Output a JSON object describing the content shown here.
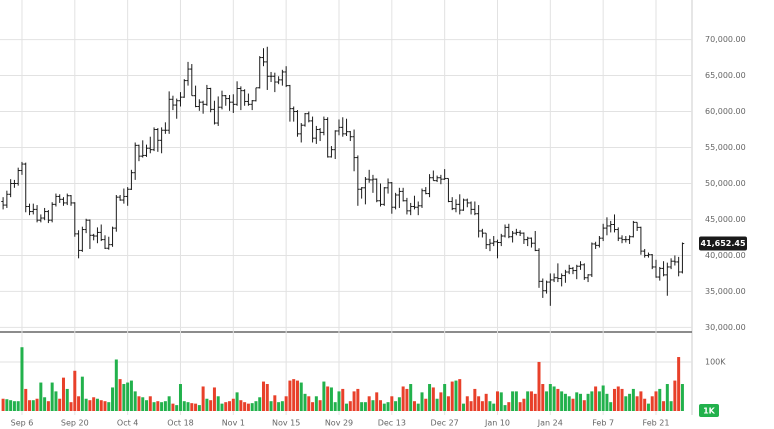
{
  "chart_data": {
    "type": "ohlc",
    "categories": [
      null,
      null,
      null,
      null,
      null,
      "Sep 6",
      null,
      null,
      null,
      null,
      null,
      null,
      null,
      null,
      null,
      null,
      null,
      null,
      null,
      "Sep 20",
      null,
      null,
      null,
      null,
      null,
      null,
      null,
      null,
      null,
      null,
      null,
      null,
      null,
      "Oct 4",
      null,
      null,
      null,
      null,
      null,
      null,
      null,
      null,
      null,
      null,
      null,
      null,
      null,
      "Oct 18",
      null,
      null,
      null,
      null,
      null,
      null,
      null,
      null,
      null,
      null,
      null,
      null,
      null,
      "Nov 1",
      null,
      null,
      null,
      null,
      null,
      null,
      null,
      null,
      null,
      null,
      null,
      null,
      null,
      "Nov 15",
      null,
      null,
      null,
      null,
      null,
      null,
      null,
      null,
      null,
      null,
      null,
      null,
      null,
      "Nov 29",
      null,
      null,
      null,
      null,
      null,
      null,
      null,
      null,
      null,
      null,
      null,
      null,
      null,
      "Dec 13",
      null,
      null,
      null,
      null,
      null,
      null,
      null,
      null,
      null,
      null,
      null,
      null,
      null,
      "Dec 27",
      null,
      null,
      null,
      null,
      null,
      null,
      null,
      null,
      null,
      null,
      null,
      null,
      null,
      "Jan 10",
      null,
      null,
      null,
      null,
      null,
      null,
      null,
      null,
      null,
      null,
      null,
      null,
      null,
      "Jan 24",
      null,
      null,
      null,
      null,
      null,
      null,
      null,
      null,
      null,
      null,
      null,
      null,
      null,
      "Feb 7",
      null,
      null,
      null,
      null,
      null,
      null,
      null,
      null,
      null,
      null,
      null,
      null,
      null,
      "Feb 21",
      null,
      null,
      null,
      null,
      null,
      null,
      null
    ],
    "ohlc": [
      [
        47500,
        48100,
        46400,
        47000
      ],
      [
        47000,
        49000,
        46600,
        48500
      ],
      [
        48500,
        50600,
        48100,
        50000
      ],
      [
        50000,
        50500,
        49400,
        50000
      ],
      [
        50000,
        52200,
        49700,
        51800
      ],
      [
        51800,
        53000,
        51200,
        52700
      ],
      [
        52700,
        52900,
        46000,
        46800
      ],
      [
        46800,
        47200,
        45600,
        46100
      ],
      [
        46100,
        47200,
        45700,
        46400
      ],
      [
        46400,
        47000,
        44600,
        44900
      ],
      [
        44900,
        45700,
        44600,
        45200
      ],
      [
        45200,
        46600,
        44900,
        46100
      ],
      [
        46100,
        46300,
        44500,
        44900
      ],
      [
        44900,
        47400,
        44600,
        47100
      ],
      [
        47100,
        48600,
        46800,
        48200
      ],
      [
        48200,
        48500,
        47300,
        47800
      ],
      [
        47800,
        48100,
        46900,
        47300
      ],
      [
        47300,
        48600,
        47000,
        48300
      ],
      [
        48300,
        48400,
        46900,
        47300
      ],
      [
        47300,
        47400,
        42600,
        43000
      ],
      [
        43000,
        43500,
        39600,
        40700
      ],
      [
        40700,
        44000,
        40500,
        43600
      ],
      [
        43600,
        45100,
        43100,
        44900
      ],
      [
        44900,
        45000,
        40900,
        42800
      ],
      [
        42800,
        43000,
        42100,
        42700
      ],
      [
        42700,
        43900,
        41700,
        43200
      ],
      [
        43200,
        44300,
        42000,
        42200
      ],
      [
        42200,
        42800,
        40900,
        41000
      ],
      [
        41000,
        42600,
        40800,
        41500
      ],
      [
        41500,
        44000,
        41200,
        43800
      ],
      [
        43800,
        48400,
        43300,
        48100
      ],
      [
        48100,
        48400,
        47600,
        47700
      ],
      [
        47700,
        49300,
        47200,
        48200
      ],
      [
        48200,
        49500,
        46900,
        49200
      ],
      [
        49200,
        51900,
        49100,
        51500
      ],
      [
        51500,
        55700,
        50500,
        55300
      ],
      [
        55300,
        55400,
        53100,
        53800
      ],
      [
        53800,
        56000,
        53600,
        53900
      ],
      [
        53900,
        55400,
        53700,
        54900
      ],
      [
        54900,
        56500,
        54200,
        54700
      ],
      [
        54700,
        57800,
        54500,
        57500
      ],
      [
        57500,
        57700,
        54400,
        56000
      ],
      [
        56000,
        57800,
        54200,
        57400
      ],
      [
        57400,
        58500,
        56900,
        57400
      ],
      [
        57400,
        62800,
        56900,
        61700
      ],
      [
        61700,
        62200,
        60200,
        60900
      ],
      [
        60900,
        61800,
        59000,
        61500
      ],
      [
        61500,
        62700,
        60700,
        62000
      ],
      [
        62000,
        64500,
        61900,
        64300
      ],
      [
        64300,
        66900,
        63600,
        65900
      ],
      [
        65900,
        66600,
        62200,
        62200
      ],
      [
        62200,
        63600,
        60600,
        60700
      ],
      [
        60700,
        61700,
        60100,
        61300
      ],
      [
        61300,
        61500,
        59700,
        61000
      ],
      [
        61000,
        63700,
        60800,
        63200
      ],
      [
        63200,
        63300,
        59900,
        60300
      ],
      [
        60300,
        61500,
        58200,
        58400
      ],
      [
        58400,
        62100,
        58000,
        60600
      ],
      [
        60600,
        62900,
        60300,
        62200
      ],
      [
        62200,
        62300,
        60800,
        61800
      ],
      [
        61800,
        62300,
        60100,
        61300
      ],
      [
        61300,
        62400,
        59800,
        61000
      ],
      [
        61000,
        64200,
        60800,
        63200
      ],
      [
        63200,
        63500,
        60200,
        62900
      ],
      [
        62900,
        63100,
        60800,
        61400
      ],
      [
        61400,
        62500,
        60800,
        61000
      ],
      [
        61000,
        61600,
        60200,
        61500
      ],
      [
        61500,
        63300,
        61400,
        63300
      ],
      [
        63300,
        67700,
        63200,
        67500
      ],
      [
        67500,
        68800,
        66300,
        66900
      ],
      [
        66900,
        69000,
        63000,
        64900
      ],
      [
        64900,
        65500,
        64100,
        64900
      ],
      [
        64900,
        65400,
        62700,
        64100
      ],
      [
        64100,
        64900,
        63800,
        64400
      ],
      [
        64400,
        65800,
        63600,
        65500
      ],
      [
        65500,
        66300,
        63400,
        63600
      ],
      [
        63600,
        63700,
        58600,
        60400
      ],
      [
        60400,
        60700,
        58600,
        60000
      ],
      [
        60000,
        60200,
        56500,
        56900
      ],
      [
        56900,
        58400,
        55700,
        58100
      ],
      [
        58100,
        59800,
        57900,
        59700
      ],
      [
        59700,
        60000,
        58500,
        58700
      ],
      [
        58700,
        59300,
        55700,
        56300
      ],
      [
        56300,
        58000,
        55500,
        57500
      ],
      [
        57500,
        57700,
        55900,
        57100
      ],
      [
        57100,
        59300,
        56700,
        58900
      ],
      [
        58900,
        59200,
        53600,
        53700
      ],
      [
        53700,
        55200,
        53600,
        54700
      ],
      [
        54700,
        57400,
        53400,
        57300
      ],
      [
        57300,
        58900,
        56700,
        57800
      ],
      [
        57800,
        59200,
        56500,
        56900
      ],
      [
        56900,
        59000,
        56600,
        57200
      ],
      [
        57200,
        57300,
        55900,
        56500
      ],
      [
        56500,
        57500,
        51700,
        53600
      ],
      [
        53600,
        53900,
        46900,
        49200
      ],
      [
        49200,
        49500,
        47900,
        49400
      ],
      [
        49400,
        50900,
        47100,
        50600
      ],
      [
        50600,
        51900,
        50100,
        50500
      ],
      [
        50500,
        51200,
        48700,
        50600
      ],
      [
        50600,
        50700,
        47400,
        47600
      ],
      [
        47600,
        50000,
        46800,
        47100
      ],
      [
        47100,
        49500,
        46900,
        49400
      ],
      [
        49400,
        50700,
        48600,
        50100
      ],
      [
        50100,
        50200,
        45800,
        46700
      ],
      [
        46700,
        48700,
        46400,
        48400
      ],
      [
        48400,
        49400,
        46600,
        48900
      ],
      [
        48900,
        49400,
        47500,
        47600
      ],
      [
        47600,
        48000,
        45700,
        46200
      ],
      [
        46200,
        47300,
        45600,
        46800
      ],
      [
        46800,
        48300,
        46400,
        46700
      ],
      [
        46700,
        47500,
        45600,
        46900
      ],
      [
        46900,
        49300,
        46600,
        49000
      ],
      [
        49000,
        49500,
        48500,
        48600
      ],
      [
        48600,
        51300,
        48100,
        50800
      ],
      [
        50800,
        51800,
        50400,
        50400
      ],
      [
        50400,
        51100,
        50200,
        50800
      ],
      [
        50800,
        51200,
        49900,
        50600
      ],
      [
        50600,
        52000,
        50500,
        50700
      ],
      [
        50700,
        50700,
        47400,
        47500
      ],
      [
        47500,
        48100,
        46300,
        46500
      ],
      [
        46500,
        47800,
        46000,
        47100
      ],
      [
        47100,
        48500,
        45700,
        46300
      ],
      [
        46300,
        47900,
        46200,
        47700
      ],
      [
        47700,
        47900,
        46700,
        47300
      ],
      [
        47300,
        47500,
        45700,
        46400
      ],
      [
        46400,
        47500,
        45600,
        45800
      ],
      [
        45800,
        47000,
        42500,
        43400
      ],
      [
        43400,
        43700,
        42500,
        43100
      ],
      [
        43100,
        43100,
        40900,
        41500
      ],
      [
        41500,
        42300,
        40600,
        41700
      ],
      [
        41700,
        42700,
        41300,
        41900
      ],
      [
        41900,
        42200,
        39600,
        41800
      ],
      [
        41800,
        43000,
        41300,
        42700
      ],
      [
        42700,
        44300,
        42500,
        43900
      ],
      [
        43900,
        44400,
        42400,
        42600
      ],
      [
        42600,
        43400,
        41800,
        43100
      ],
      [
        43100,
        43700,
        42800,
        43200
      ],
      [
        43200,
        43500,
        42700,
        43100
      ],
      [
        43100,
        43200,
        41600,
        42200
      ],
      [
        42200,
        42600,
        41300,
        42400
      ],
      [
        42400,
        42500,
        41100,
        41700
      ],
      [
        41700,
        43400,
        40600,
        40700
      ],
      [
        40700,
        41000,
        35500,
        36400
      ],
      [
        36400,
        36800,
        34100,
        35100
      ],
      [
        35100,
        36500,
        34700,
        36300
      ],
      [
        36300,
        37500,
        33000,
        36600
      ],
      [
        36600,
        37500,
        36300,
        36900
      ],
      [
        36900,
        38900,
        36300,
        36800
      ],
      [
        36800,
        37500,
        35700,
        37200
      ],
      [
        37200,
        38000,
        36200,
        37700
      ],
      [
        37700,
        38700,
        37400,
        38200
      ],
      [
        38200,
        38400,
        37400,
        37900
      ],
      [
        37900,
        38700,
        36700,
        38500
      ],
      [
        38500,
        39200,
        38000,
        38700
      ],
      [
        38700,
        38900,
        36600,
        36900
      ],
      [
        36900,
        37400,
        36300,
        37300
      ],
      [
        37300,
        41800,
        37000,
        41600
      ],
      [
        41600,
        41900,
        40900,
        41400
      ],
      [
        41400,
        42700,
        41100,
        42400
      ],
      [
        42400,
        44400,
        42000,
        43800
      ],
      [
        43800,
        45300,
        42800,
        44100
      ],
      [
        44100,
        44800,
        43200,
        44300
      ],
      [
        44300,
        45700,
        43200,
        43600
      ],
      [
        43600,
        43900,
        42000,
        42400
      ],
      [
        42400,
        42800,
        41700,
        42200
      ],
      [
        42200,
        42700,
        41800,
        42200
      ],
      [
        42200,
        42800,
        41600,
        42600
      ],
      [
        42600,
        44800,
        42500,
        44600
      ],
      [
        44600,
        44600,
        43400,
        43900
      ],
      [
        43900,
        44000,
        40100,
        40600
      ],
      [
        40600,
        40900,
        39700,
        40000
      ],
      [
        40000,
        40400,
        39700,
        40100
      ],
      [
        40100,
        40200,
        38100,
        38400
      ],
      [
        38400,
        39400,
        36900,
        37000
      ],
      [
        37000,
        38400,
        36500,
        38200
      ],
      [
        38200,
        39200,
        37100,
        37300
      ],
      [
        37300,
        39000,
        34400,
        38400
      ],
      [
        38400,
        39600,
        38100,
        39200
      ],
      [
        39200,
        40000,
        38600,
        39100
      ],
      [
        39100,
        39800,
        37100,
        37700
      ],
      [
        37700,
        41800,
        37500,
        41652.45
      ]
    ],
    "last_value_label": "41,652.45",
    "volume": [
      25000,
      24000,
      22000,
      20000,
      20000,
      130000,
      45000,
      22000,
      22000,
      25000,
      58000,
      28000,
      20000,
      58000,
      40000,
      25000,
      68000,
      45000,
      18000,
      82000,
      30000,
      70000,
      25000,
      22000,
      28000,
      25000,
      22000,
      20000,
      18000,
      48000,
      105000,
      65000,
      55000,
      58000,
      62000,
      40000,
      30000,
      28000,
      22000,
      30000,
      18000,
      20000,
      18000,
      20000,
      30000,
      15000,
      12000,
      55000,
      20000,
      18000,
      16000,
      15000,
      12000,
      50000,
      25000,
      22000,
      48000,
      30000,
      15000,
      18000,
      20000,
      25000,
      38000,
      22000,
      18000,
      15000,
      16000,
      20000,
      28000,
      60000,
      55000,
      20000,
      32000,
      18000,
      20000,
      30000,
      62000,
      65000,
      62000,
      58000,
      35000,
      30000,
      18000,
      30000,
      22000,
      60000,
      50000,
      48000,
      18000,
      40000,
      45000,
      15000,
      20000,
      40000,
      45000,
      18000,
      18000,
      30000,
      22000,
      38000,
      22000,
      15000,
      18000,
      30000,
      20000,
      28000,
      50000,
      45000,
      55000,
      20000,
      15000,
      38000,
      25000,
      55000,
      48000,
      25000,
      38000,
      55000,
      30000,
      60000,
      62000,
      65000,
      15000,
      30000,
      20000,
      45000,
      30000,
      20000,
      35000,
      20000,
      15000,
      40000,
      38000,
      12000,
      18000,
      40000,
      40000,
      18000,
      25000,
      40000,
      40000,
      35000,
      100000,
      55000,
      40000,
      55000,
      50000,
      45000,
      40000,
      35000,
      30000,
      25000,
      38000,
      35000,
      22000,
      35000,
      40000,
      50000,
      40000,
      52000,
      35000,
      18000,
      45000,
      50000,
      45000,
      30000,
      35000,
      45000,
      30000,
      40000,
      25000,
      15000,
      30000,
      40000,
      45000,
      20000,
      55000,
      20000,
      62000,
      110000,
      55000
    ],
    "volume_badge": "1K",
    "ylim": [
      29500,
      75500
    ],
    "yticks": [
      {
        "value": 30000,
        "label": "30,000.00"
      },
      {
        "value": 35000,
        "label": "35,000.00"
      },
      {
        "value": 40000,
        "label": "40,000.00"
      },
      {
        "value": 45000,
        "label": "45,000.00"
      },
      {
        "value": 50000,
        "label": "50,000.00"
      },
      {
        "value": 55000,
        "label": "55,000.00"
      },
      {
        "value": 60000,
        "label": "60,000.00"
      },
      {
        "value": 65000,
        "label": "65,000.00"
      },
      {
        "value": 70000,
        "label": "70,000.00"
      }
    ],
    "volume_ylim": [
      0,
      159000
    ],
    "volume_yticks": [
      {
        "value": 100000,
        "label": "100K"
      }
    ],
    "bar_color": "#1a1a1a",
    "up_color": "#22b14c",
    "down_color": "#e8402a",
    "grid": true
  }
}
